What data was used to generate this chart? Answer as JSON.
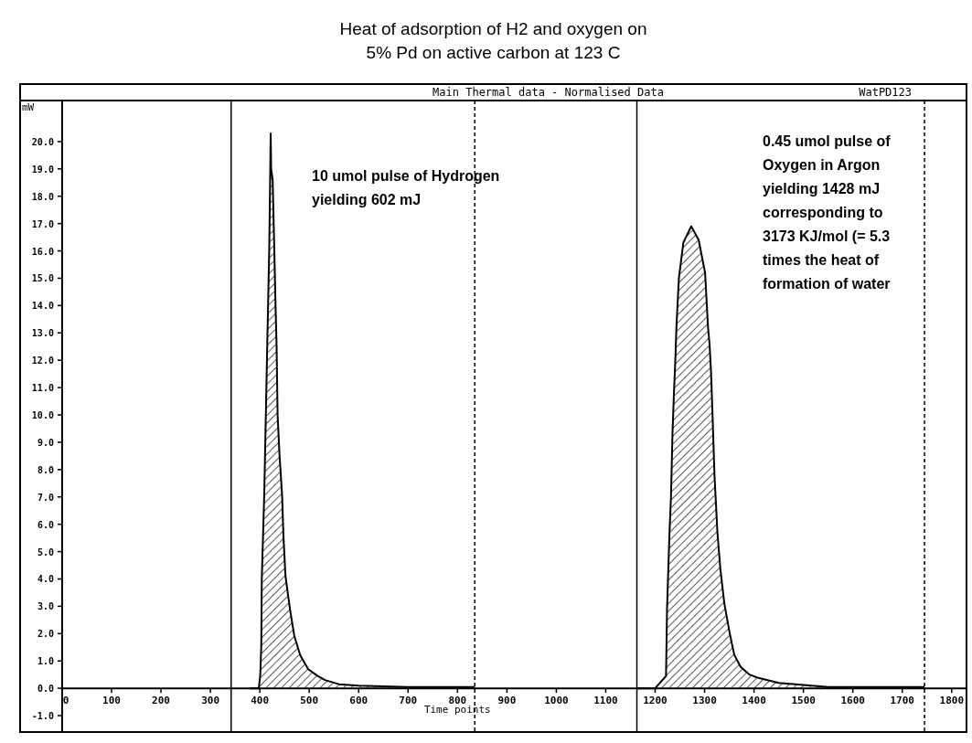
{
  "chart_data": {
    "type": "area",
    "title": "Heat of adsorption of H2 and oxygen on 5% Pd on active carbon at 123 C",
    "subtitle": "Main Thermal data - Normalised Data",
    "xlabel": "Time points",
    "ylabel": "mW",
    "annotations": [
      "WatPD123",
      "10 umol pulse of Hydrogen yielding 602 mJ",
      "0.45 umol pulse of Oxygen in Argon yielding 1428 mJ corresponding to 3173 KJ/mol (= 5.3 times the heat of formation of water"
    ],
    "series": [
      {
        "color": "#000000",
        "x": [
          380,
          398,
          401,
          403,
          404,
          409,
          415,
          419,
          421,
          422,
          423,
          426,
          429,
          432,
          434,
          436,
          440,
          445,
          448,
          452,
          461,
          470,
          482,
          498,
          517,
          532,
          560,
          600,
          700,
          835,
          900,
          1163,
          1200,
          1222,
          1224,
          1229,
          1232,
          1235,
          1238,
          1241,
          1243,
          1248,
          1257,
          1273,
          1288,
          1301,
          1307,
          1310,
          1313,
          1316,
          1320,
          1326,
          1332,
          1340,
          1351,
          1360,
          1373,
          1391,
          1407,
          1450,
          1550,
          1745
        ],
        "values": [
          0,
          0,
          0.5,
          1.6,
          4,
          7.1,
          12.5,
          16,
          18.8,
          20.3,
          19,
          18.6,
          16.3,
          13.9,
          12.5,
          10,
          8.5,
          7.1,
          5.5,
          4.1,
          2.9,
          1.9,
          1.2,
          0.7,
          0.45,
          0.3,
          0.15,
          0.1,
          0.05,
          0.05,
          null,
          0,
          0,
          0.45,
          2.9,
          5.7,
          7,
          9.3,
          10.8,
          12.1,
          13.2,
          15,
          16.3,
          16.9,
          16.4,
          15.2,
          13.2,
          12.6,
          11.6,
          10.05,
          7.8,
          5.7,
          4.35,
          3.1,
          2,
          1.23,
          0.78,
          0.5,
          0.39,
          0.2,
          0.05,
          0.05
        ]
      }
    ],
    "xlim": [
      -85,
      1830
    ],
    "ylim": [
      -1.6,
      21.5
    ],
    "xticks": [
      0,
      100,
      200,
      300,
      400,
      500,
      600,
      700,
      800,
      900,
      1000,
      1100,
      1200,
      1300,
      1400,
      1500,
      1600,
      1700,
      1800
    ],
    "yticks": [
      {
        "value": -1,
        "label": "-1.0"
      },
      {
        "value": 0,
        "label": "0.0"
      },
      {
        "value": 1,
        "label": "1.0"
      },
      {
        "value": 2,
        "label": "2.0"
      },
      {
        "value": 3,
        "label": "3.0"
      },
      {
        "value": 4,
        "label": "4.0"
      },
      {
        "value": 5,
        "label": "5.0"
      },
      {
        "value": 6,
        "label": "6.0"
      },
      {
        "value": 7,
        "label": "7.0"
      },
      {
        "value": 8,
        "label": "8.0"
      },
      {
        "value": 9,
        "label": "9.0"
      },
      {
        "value": 10,
        "label": "10.0"
      },
      {
        "value": 11,
        "label": "11.0"
      },
      {
        "value": 12,
        "label": "12.0"
      },
      {
        "value": 13,
        "label": "13.0"
      },
      {
        "value": 14,
        "label": "14.0"
      },
      {
        "value": 15,
        "label": "15.0"
      },
      {
        "value": 16,
        "label": "16.0"
      },
      {
        "value": 17,
        "label": "17.0"
      },
      {
        "value": 18,
        "label": "18.0"
      },
      {
        "value": 19,
        "label": "19.0"
      },
      {
        "value": 20,
        "label": "20.0"
      }
    ],
    "ref_lines": [
      {
        "axis": "x",
        "value": 342,
        "line_style": "solid"
      },
      {
        "axis": "x",
        "value": 835,
        "line_style": "dashed"
      },
      {
        "axis": "x",
        "value": 1163,
        "line_style": "solid"
      },
      {
        "axis": "x",
        "value": 1745,
        "line_style": "dashed"
      }
    ],
    "grid": false
  }
}
